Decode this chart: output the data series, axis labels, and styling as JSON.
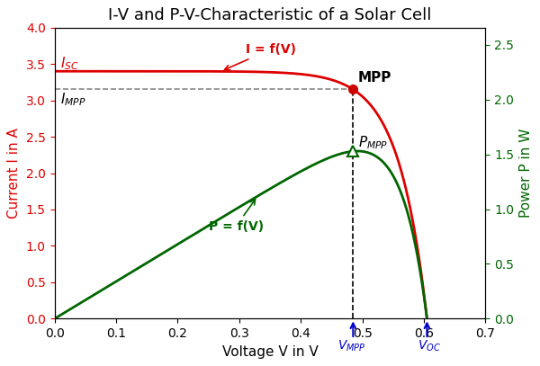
{
  "title": "I-V and P-V-Characteristic of a Solar Cell",
  "xlabel": "Voltage V in V",
  "ylabel_left": "Current I in A",
  "ylabel_right": "Power P in W",
  "Isc": 3.4,
  "Voc": 0.605,
  "Impp": 3.15,
  "Vmpp": 0.485,
  "xlim": [
    0,
    0.7
  ],
  "ylim_I": [
    0,
    4
  ],
  "iv_color": "#dd0000",
  "pv_color": "#006600",
  "annot_color": "#0000cc",
  "mpp_dot_color": "#cc0000",
  "dashed_color": "#888888",
  "title_fontsize": 13,
  "label_fontsize": 11,
  "tick_fontsize": 10
}
